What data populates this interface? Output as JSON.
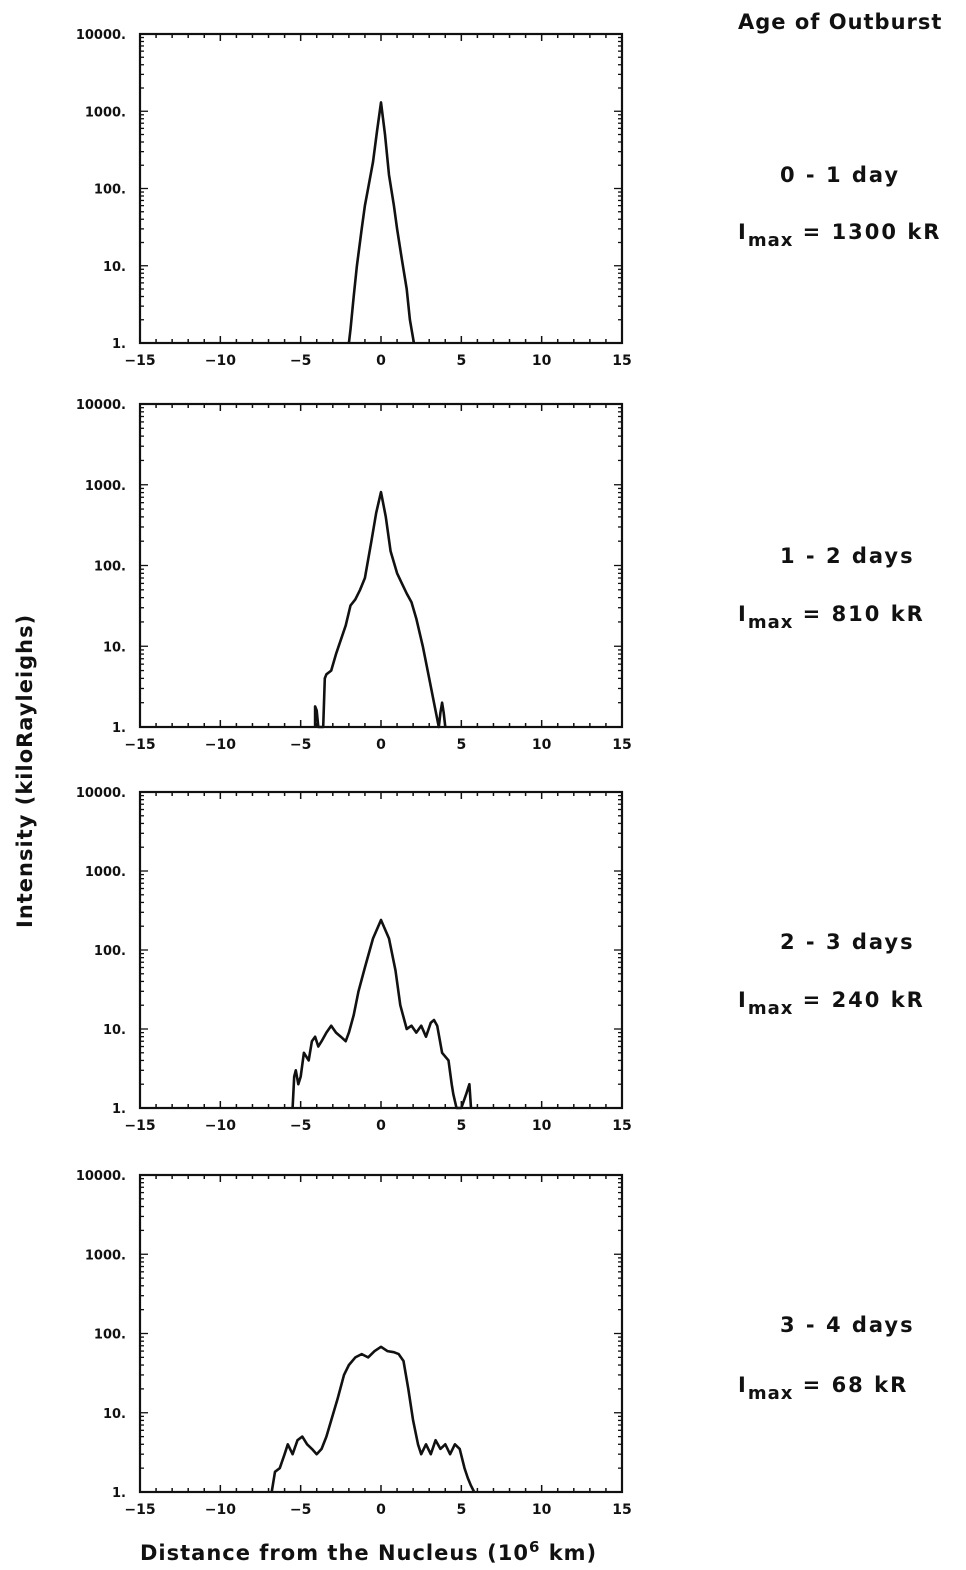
{
  "header": {
    "title": "Age of Outburst"
  },
  "axes": {
    "ylabel": "Intensity (kiloRayleighs)",
    "xlabel_main": "Distance from the Nucleus (10",
    "xlabel_sup": "6",
    "xlabel_tail": " km)"
  },
  "colors": {
    "ink": "#111111",
    "background": "#ffffff"
  },
  "chart_data": [
    {
      "type": "line",
      "age": "0 - 1 day",
      "imax_value": "= 1300 kR",
      "xlim": [
        -15,
        15
      ],
      "ylim": [
        1,
        10000
      ],
      "yscale": "log",
      "xticks": [
        "-15",
        "-10",
        "-5",
        "0",
        "5",
        "10",
        "15"
      ],
      "yticks": [
        "1.",
        "10.",
        "100.",
        "1000.",
        "10000."
      ],
      "series": [
        {
          "x": [
            -2.0,
            -1.9,
            -1.7,
            -1.5,
            -1.2,
            -1.0,
            -0.8,
            -0.5,
            -0.25,
            0,
            0.25,
            0.5,
            0.8,
            1.0,
            1.3,
            1.6,
            1.8,
            2.05
          ],
          "y": [
            1,
            1.5,
            4,
            10,
            30,
            60,
            100,
            220,
            550,
            1300,
            500,
            150,
            60,
            30,
            12,
            5,
            2,
            1
          ]
        }
      ]
    },
    {
      "type": "line",
      "age": "1 - 2 days",
      "imax_value": "= 810 kR",
      "xlim": [
        -15,
        15
      ],
      "ylim": [
        1,
        10000
      ],
      "yscale": "log",
      "xticks": [
        "-15",
        "-10",
        "-5",
        "0",
        "5",
        "10",
        "15"
      ],
      "yticks": [
        "1.",
        "10.",
        "100.",
        "1000.",
        "10000."
      ],
      "series": [
        {
          "x": [
            -4.1,
            -4.1,
            -4.0,
            -3.9,
            -3.6,
            -3.5,
            -3.4,
            -3.1,
            -2.8,
            -2.5,
            -2.2,
            -1.9,
            -1.6,
            -1.3,
            -1.0,
            -0.6,
            -0.3,
            0,
            0.3,
            0.6,
            1.0,
            1.3,
            1.6,
            1.9,
            2.2,
            2.6,
            3.0,
            3.3,
            3.6,
            3.7,
            3.8,
            3.9,
            4.0
          ],
          "y": [
            1,
            1.8,
            1.6,
            1,
            1,
            4,
            4.5,
            5,
            8,
            12,
            18,
            32,
            38,
            50,
            70,
            200,
            450,
            810,
            400,
            150,
            80,
            60,
            45,
            35,
            22,
            10,
            4,
            2,
            1,
            1.5,
            2,
            1.5,
            1
          ]
        }
      ]
    },
    {
      "type": "line",
      "age": "2 - 3 days",
      "imax_value": "= 240 kR",
      "xlim": [
        -15,
        15
      ],
      "ylim": [
        1,
        10000
      ],
      "yscale": "log",
      "xticks": [
        "-15",
        "-10",
        "-5",
        "0",
        "5",
        "10",
        "15"
      ],
      "yticks": [
        "1.",
        "10.",
        "100.",
        "1000.",
        "10000."
      ],
      "series": [
        {
          "x": [
            -5.5,
            -5.4,
            -5.3,
            -5.15,
            -5.0,
            -4.8,
            -4.5,
            -4.3,
            -4.1,
            -3.9,
            -3.7,
            -3.4,
            -3.1,
            -2.8,
            -2.5,
            -2.2,
            -2.0,
            -1.7,
            -1.4,
            -1.0,
            -0.5,
            0,
            0.5,
            0.9,
            1.2,
            1.6,
            1.9,
            2.2,
            2.5,
            2.8,
            3.1,
            3.3,
            3.5,
            3.8,
            4.2,
            4.4,
            4.5,
            4.7,
            4.8,
            5.0,
            5.3,
            5.5,
            5.6
          ],
          "y": [
            1,
            2.5,
            3,
            2,
            2.5,
            5,
            4,
            7,
            8,
            6,
            7,
            9,
            11,
            9,
            8,
            7,
            9,
            15,
            30,
            60,
            140,
            240,
            140,
            55,
            20,
            10,
            11,
            9,
            11,
            8,
            12,
            13,
            11,
            5,
            4,
            2,
            1.5,
            1,
            1,
            1,
            1.5,
            2,
            1
          ]
        }
      ]
    },
    {
      "type": "line",
      "age": "3 - 4 days",
      "imax_value": "= 68 kR",
      "xlim": [
        -15,
        15
      ],
      "ylim": [
        1,
        10000
      ],
      "yscale": "log",
      "xticks": [
        "-15",
        "-10",
        "-5",
        "0",
        "5",
        "10",
        "15"
      ],
      "yticks": [
        "1.",
        "10.",
        "100.",
        "1000.",
        "10000."
      ],
      "series": [
        {
          "x": [
            -6.8,
            -6.6,
            -6.3,
            -6.0,
            -5.8,
            -5.5,
            -5.2,
            -4.9,
            -4.6,
            -4.3,
            -4.0,
            -3.7,
            -3.4,
            -3.1,
            -2.7,
            -2.3,
            -2.0,
            -1.6,
            -1.2,
            -0.8,
            -0.4,
            0,
            0.4,
            0.8,
            1.1,
            1.4,
            1.7,
            2.0,
            2.3,
            2.5,
            2.8,
            3.1,
            3.4,
            3.7,
            4.0,
            4.3,
            4.6,
            4.9,
            5.2,
            5.4,
            5.6,
            5.8
          ],
          "y": [
            1,
            1.8,
            2,
            3,
            4,
            3,
            4.5,
            5,
            4,
            3.5,
            3,
            3.5,
            5,
            8,
            15,
            30,
            40,
            50,
            55,
            50,
            60,
            68,
            60,
            58,
            55,
            45,
            20,
            8,
            4,
            3,
            4,
            3,
            4.5,
            3.5,
            4,
            3,
            4,
            3.5,
            2,
            1.5,
            1.2,
            1
          ]
        }
      ]
    }
  ]
}
